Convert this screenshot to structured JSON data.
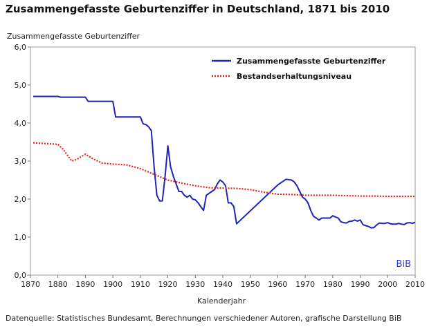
{
  "chart_data": {
    "type": "line",
    "title": "Zusammengefasste Geburtenziffer in Deutschland, 1871 bis 2010",
    "ylabel": "Zusammengefasste Geburtenziffer",
    "xlabel": "Kalenderjahr",
    "xlim": [
      1870,
      2010
    ],
    "ylim": [
      0,
      6
    ],
    "x_ticks": [
      1870,
      1880,
      1890,
      1900,
      1910,
      1920,
      1930,
      1940,
      1950,
      1960,
      1970,
      1980,
      1990,
      2000,
      2010
    ],
    "y_ticks": [
      "0,0",
      "1,0",
      "2,0",
      "3,0",
      "4,0",
      "5,0",
      "6,0"
    ],
    "y_tick_values": [
      0,
      1,
      2,
      3,
      4,
      5,
      6
    ],
    "grid": false,
    "legend_position": "top-right",
    "series": [
      {
        "name": "Zusammengefasste Geburtenziffer",
        "color": "#1e23b4",
        "style": "solid",
        "points": [
          [
            1871,
            4.7
          ],
          [
            1880,
            4.7
          ],
          [
            1881,
            4.68
          ],
          [
            1890,
            4.68
          ],
          [
            1891,
            4.57
          ],
          [
            1900,
            4.57
          ],
          [
            1901,
            4.16
          ],
          [
            1910,
            4.16
          ],
          [
            1911,
            3.98
          ],
          [
            1912,
            3.96
          ],
          [
            1913,
            3.9
          ],
          [
            1914,
            3.8
          ],
          [
            1915,
            2.85
          ],
          [
            1916,
            2.1
          ],
          [
            1917,
            1.95
          ],
          [
            1918,
            1.95
          ],
          [
            1919,
            2.6
          ],
          [
            1920,
            3.4
          ],
          [
            1921,
            2.85
          ],
          [
            1922,
            2.6
          ],
          [
            1923,
            2.4
          ],
          [
            1924,
            2.2
          ],
          [
            1925,
            2.2
          ],
          [
            1926,
            2.1
          ],
          [
            1927,
            2.05
          ],
          [
            1928,
            2.1
          ],
          [
            1929,
            2.0
          ],
          [
            1930,
            1.98
          ],
          [
            1931,
            1.9
          ],
          [
            1932,
            1.8
          ],
          [
            1933,
            1.7
          ],
          [
            1934,
            2.1
          ],
          [
            1935,
            2.15
          ],
          [
            1936,
            2.2
          ],
          [
            1937,
            2.25
          ],
          [
            1938,
            2.4
          ],
          [
            1939,
            2.5
          ],
          [
            1940,
            2.45
          ],
          [
            1941,
            2.35
          ],
          [
            1942,
            1.9
          ],
          [
            1943,
            1.9
          ],
          [
            1944,
            1.8
          ],
          [
            1945,
            1.35
          ],
          [
            1960,
            2.37
          ],
          [
            1963,
            2.52
          ],
          [
            1965,
            2.5
          ],
          [
            1966,
            2.45
          ],
          [
            1967,
            2.35
          ],
          [
            1968,
            2.2
          ],
          [
            1969,
            2.05
          ],
          [
            1970,
            2.0
          ],
          [
            1971,
            1.9
          ],
          [
            1972,
            1.7
          ],
          [
            1973,
            1.55
          ],
          [
            1975,
            1.45
          ],
          [
            1976,
            1.5
          ],
          [
            1978,
            1.5
          ],
          [
            1979,
            1.5
          ],
          [
            1980,
            1.56
          ],
          [
            1981,
            1.53
          ],
          [
            1982,
            1.5
          ],
          [
            1983,
            1.4
          ],
          [
            1984,
            1.38
          ],
          [
            1985,
            1.37
          ],
          [
            1986,
            1.41
          ],
          [
            1987,
            1.42
          ],
          [
            1988,
            1.45
          ],
          [
            1989,
            1.42
          ],
          [
            1990,
            1.45
          ],
          [
            1991,
            1.33
          ],
          [
            1992,
            1.3
          ],
          [
            1993,
            1.28
          ],
          [
            1994,
            1.24
          ],
          [
            1995,
            1.25
          ],
          [
            1996,
            1.32
          ],
          [
            1997,
            1.37
          ],
          [
            1998,
            1.36
          ],
          [
            1999,
            1.36
          ],
          [
            2000,
            1.38
          ],
          [
            2001,
            1.35
          ],
          [
            2002,
            1.34
          ],
          [
            2003,
            1.34
          ],
          [
            2004,
            1.36
          ],
          [
            2005,
            1.34
          ],
          [
            2006,
            1.33
          ],
          [
            2007,
            1.37
          ],
          [
            2008,
            1.38
          ],
          [
            2009,
            1.36
          ],
          [
            2010,
            1.39
          ]
        ]
      },
      {
        "name": "Bestandserhaltungsniveau",
        "color": "#e8201a",
        "style": "dotted",
        "points": [
          [
            1871,
            3.48
          ],
          [
            1880,
            3.44
          ],
          [
            1882,
            3.3
          ],
          [
            1884,
            3.1
          ],
          [
            1885,
            3.0
          ],
          [
            1887,
            3.05
          ],
          [
            1890,
            3.18
          ],
          [
            1893,
            3.05
          ],
          [
            1896,
            2.95
          ],
          [
            1900,
            2.92
          ],
          [
            1905,
            2.9
          ],
          [
            1910,
            2.8
          ],
          [
            1915,
            2.65
          ],
          [
            1920,
            2.5
          ],
          [
            1925,
            2.42
          ],
          [
            1930,
            2.35
          ],
          [
            1935,
            2.3
          ],
          [
            1940,
            2.29
          ],
          [
            1945,
            2.28
          ],
          [
            1950,
            2.25
          ],
          [
            1955,
            2.18
          ],
          [
            1960,
            2.13
          ],
          [
            1965,
            2.12
          ],
          [
            1970,
            2.1
          ],
          [
            1975,
            2.1
          ],
          [
            1980,
            2.1
          ],
          [
            1985,
            2.09
          ],
          [
            1990,
            2.08
          ],
          [
            1995,
            2.08
          ],
          [
            2000,
            2.07
          ],
          [
            2005,
            2.07
          ],
          [
            2010,
            2.07
          ]
        ]
      }
    ]
  },
  "logo_text": "BiB",
  "footer_text": "Datenquelle: Statistisches Bundesamt, Berechnungen verschiedener Autoren, grafische Darstellung BiB"
}
